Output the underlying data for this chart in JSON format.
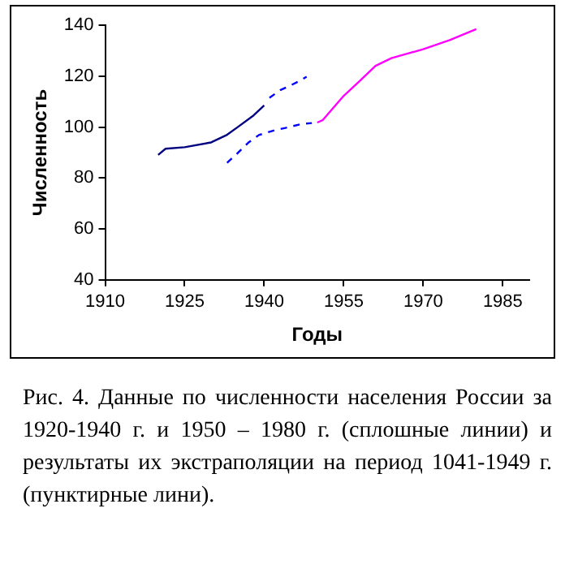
{
  "chart_data": {
    "type": "line",
    "xlabel": "Годы",
    "ylabel": "Численность",
    "xlim": [
      1910,
      1990
    ],
    "xticks": [
      1910,
      1925,
      1940,
      1955,
      1970,
      1985
    ],
    "ylim": [
      40,
      140
    ],
    "yticks": [
      40,
      60,
      80,
      100,
      120,
      140
    ],
    "grid": false,
    "legend": false,
    "marker": "none",
    "series": [
      {
        "color": "#000080",
        "line_style": "solid",
        "x": [
          1920,
          1921.4,
          1925,
          1930,
          1933,
          1935,
          1938,
          1940
        ],
        "values": [
          89.1,
          91.5,
          92.1,
          94,
          97,
          100,
          104.6,
          108.5
        ]
      },
      {
        "color": "#0000ff",
        "line_style": "dashed",
        "x": [
          1941,
          1943,
          1945,
          1947,
          1948
        ],
        "values": [
          111.5,
          114.5,
          116.4,
          118.5,
          119.8
        ]
      },
      {
        "color": "#0000ff",
        "line_style": "dashed",
        "x": [
          1933,
          1935,
          1937,
          1939,
          1942,
          1944,
          1947,
          1949
        ],
        "values": [
          86,
          89.8,
          93.9,
          96.9,
          98.8,
          99.7,
          101.2,
          101.6
        ]
      },
      {
        "color": "#ff00ff",
        "line_style": "solid",
        "x": [
          1950,
          1951,
          1955,
          1958,
          1961,
          1964,
          1970,
          1975,
          1980
        ],
        "values": [
          101.8,
          102.7,
          112.3,
          118.1,
          124.1,
          127.1,
          130.6,
          134.2,
          138.5
        ]
      }
    ],
    "annotations": [
      "Рис. 4. Данные по численности населения России за 1920-1940 г. и 1950 – 1980 г. (сплошные линии) и результаты их экстраполяции на период 1041-1949 г. (пунктирные лини)."
    ]
  }
}
